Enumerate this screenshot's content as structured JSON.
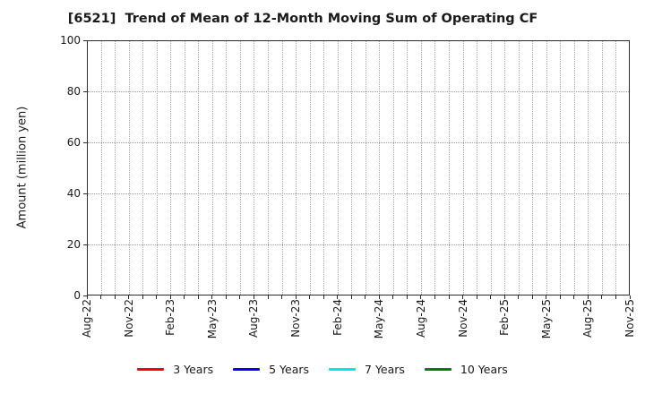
{
  "chart_data": {
    "type": "line",
    "title": "[6521]  Trend of Mean of 12-Month Moving Sum of Operating CF",
    "ylabel": "Amount (million yen)",
    "xlabel": "",
    "ylim": [
      0,
      100
    ],
    "yticks": [
      0,
      20,
      40,
      60,
      80,
      100
    ],
    "x_tick_labels": [
      "Aug-22",
      "Nov-22",
      "Feb-23",
      "May-23",
      "Aug-23",
      "Nov-23",
      "Feb-24",
      "May-24",
      "Aug-24",
      "Nov-24",
      "Feb-25",
      "May-25",
      "Aug-25",
      "Nov-25"
    ],
    "x_months_between_labels": 3,
    "x_total_month_intervals": 39,
    "grid": "dotted",
    "legend_position": "bottom-center",
    "series": [
      {
        "name": "3 Years",
        "color": "#ff0000",
        "values": []
      },
      {
        "name": "5 Years",
        "color": "#0000ff",
        "values": []
      },
      {
        "name": "7 Years",
        "color": "#00e5ee",
        "values": []
      },
      {
        "name": "10 Years",
        "color": "#008000",
        "values": []
      }
    ]
  },
  "colors": {
    "background": "#ffffff",
    "spine": "#2b2b2b",
    "grid": "#9a9a9a",
    "text": "#1a1a1a"
  }
}
